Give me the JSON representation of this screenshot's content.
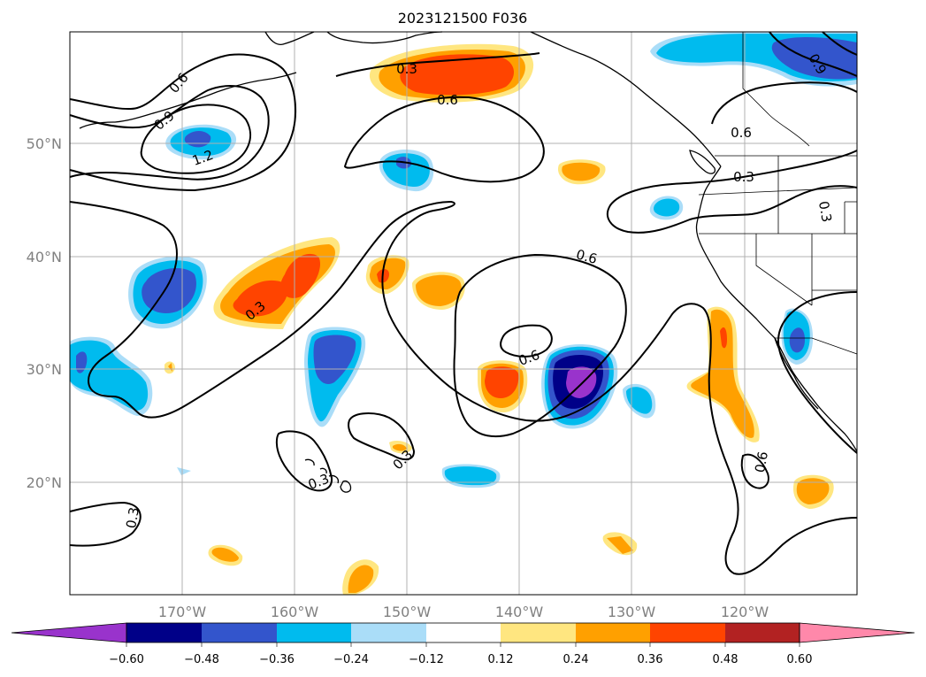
{
  "map": {
    "title": "2023121500 F036",
    "lat_labels": [
      "50°N",
      "40°N",
      "30°N",
      "20°N"
    ],
    "lon_labels": [
      "170°W",
      "160°W",
      "150°W",
      "140°W",
      "130°W",
      "120°W"
    ],
    "contour_labels": [
      "0.6",
      "0.9",
      "1.2",
      "0.3",
      "0.6",
      "0.6",
      "0.9",
      "0.3",
      "0.3",
      "0.6",
      "0.3",
      "0.6",
      "0.3",
      "0.3",
      "0.6",
      "0.3"
    ]
  },
  "colorbar": {
    "tick_labels": [
      "−0.60",
      "−0.48",
      "−0.36",
      "−0.24",
      "−0.12",
      "0.12",
      "0.24",
      "0.36",
      "0.48",
      "0.60"
    ],
    "colors": [
      "#9933cc",
      "#000088",
      "#3355cc",
      "#00bbee",
      "#aaddf8",
      "#ffffff",
      "#ffe680",
      "#ffa000",
      "#ff4400",
      "#b22222",
      "#ff88aa"
    ]
  },
  "fill_colors": {
    "neg_light": "#aaddf8",
    "neg_cyan": "#00bbee",
    "neg_blue": "#3355cc",
    "neg_navy": "#000088",
    "neg_purple": "#9933cc",
    "pos_yellow": "#ffe680",
    "pos_orange": "#ffa000",
    "pos_red": "#ff4400"
  }
}
